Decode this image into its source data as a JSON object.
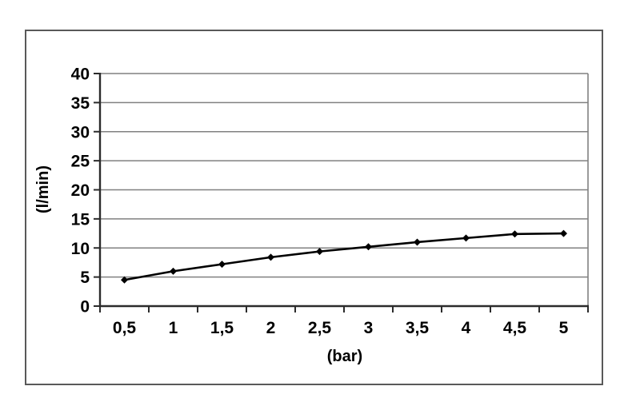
{
  "chart_data": {
    "type": "line",
    "title": "",
    "xlabel": "(bar)",
    "ylabel": "(l/min)",
    "x_values": [
      0.5,
      1,
      1.5,
      2,
      2.5,
      3,
      3.5,
      4,
      4.5,
      5
    ],
    "x_tick_labels": [
      "0,5",
      "1",
      "1,5",
      "2",
      "2,5",
      "3",
      "3,5",
      "4",
      "4,5",
      "5"
    ],
    "values": [
      4.5,
      6.0,
      7.2,
      8.4,
      9.4,
      10.2,
      11.0,
      11.7,
      12.4,
      12.5
    ],
    "y_tick_labels": [
      "0",
      "5",
      "10",
      "15",
      "20",
      "25",
      "30",
      "35",
      "40"
    ],
    "ylim": [
      0,
      40
    ],
    "y_tick_step": 5,
    "grid": "horizontal",
    "legend": "none",
    "marker": "diamond",
    "colors": {
      "line": "#000000",
      "marker": "#000000",
      "grid": "#808080",
      "axis": "#2b2b2b",
      "frame": "#595959",
      "text": "#000000",
      "background": "#ffffff"
    }
  }
}
